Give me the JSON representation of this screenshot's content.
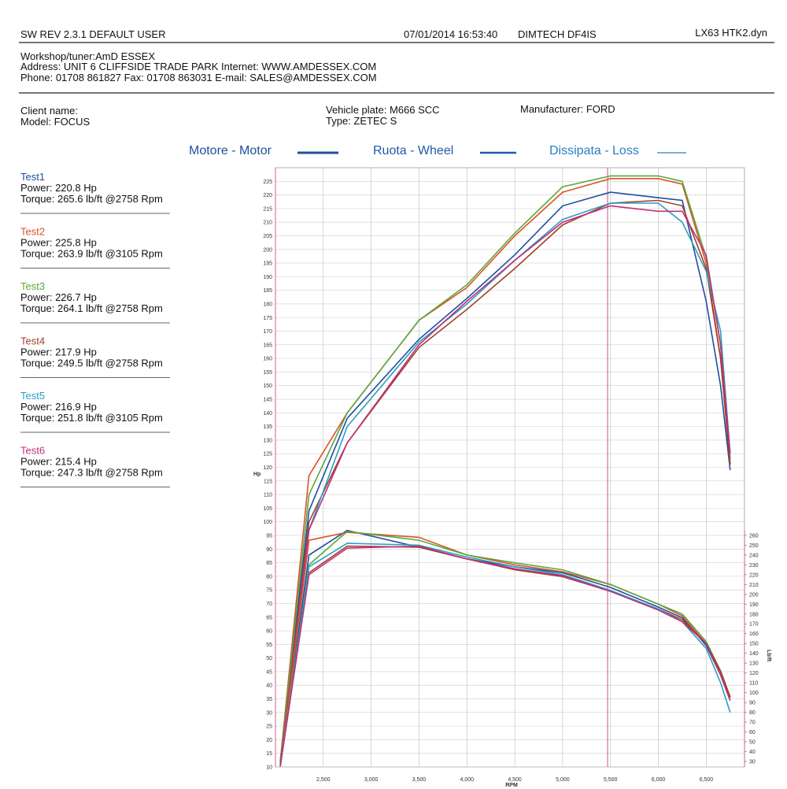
{
  "header": {
    "software": "SW REV 2.3.1   DEFAULT USER",
    "datetime": "07/01/2014 16:53:40",
    "device": "DIMTECH DF4IS",
    "file": "LX63 HTK2.dyn"
  },
  "workshop": [
    "Workshop/tuner:AmD ESSEX",
    "Address: UNIT 6 CLIFFSIDE TRADE PARK Internet: WWW.AMDESSEX.COM",
    "Phone: 01708 861827 Fax: 01708 863031 E-mail: SALES@AMDESSEX.COM"
  ],
  "vehicle": {
    "client": "Client name:",
    "model": "Model: FOCUS",
    "plate": "Vehicle plate: M666 SCC",
    "type": "Type: ZETEC S",
    "manufacturer": "Manufacturer: FORD"
  },
  "chart_data": {
    "type": "line",
    "line_legend": [
      {
        "label": "Motore - Motor",
        "color": "#1f4f9a"
      },
      {
        "label": "Ruota - Wheel",
        "color": "#1f5aa8"
      },
      {
        "label": "Dissipata - Loss",
        "color": "#2a7fc0"
      }
    ],
    "xlabel": "RPM",
    "ylabel": "Hp",
    "y2label": "Lb/ft",
    "x": [
      2050,
      2350,
      2750,
      3500,
      4000,
      4500,
      5000,
      5500,
      6000,
      6250,
      6500,
      6650,
      6750
    ],
    "xlim": [
      2000,
      6900
    ],
    "xticks": [
      {
        "value": 2500,
        "label": "2,500"
      },
      {
        "value": 3000,
        "label": "3,000"
      },
      {
        "value": 3500,
        "label": "3,500"
      },
      {
        "value": 4000,
        "label": "4,000"
      },
      {
        "value": 4500,
        "label": "4,500"
      },
      {
        "value": 5000,
        "label": "5,000"
      },
      {
        "value": 5500,
        "label": "5,500"
      },
      {
        "value": 6000,
        "label": "6,000"
      },
      {
        "value": 6500,
        "label": "6,500"
      }
    ],
    "ylim": [
      10,
      230
    ],
    "yticks": [
      10,
      15,
      20,
      25,
      30,
      35,
      40,
      45,
      50,
      55,
      60,
      65,
      70,
      75,
      80,
      85,
      90,
      95,
      100,
      105,
      110,
      115,
      120,
      125,
      130,
      135,
      140,
      145,
      150,
      155,
      160,
      165,
      170,
      175,
      180,
      185,
      190,
      195,
      200,
      205,
      210,
      215,
      220,
      225
    ],
    "y2lim": [
      24.4,
      634
    ],
    "y2ticks": [
      30,
      40,
      50,
      60,
      70,
      80,
      90,
      100,
      110,
      120,
      130,
      140,
      150,
      160,
      170,
      180,
      190,
      200,
      210,
      220,
      230,
      240,
      250,
      260
    ],
    "marker_x": 5470,
    "grid": true,
    "series": [
      {
        "name": "Test1",
        "summary": [
          "Power: 220.8 Hp",
          "Torque: 265.6 lb/ft @2758 Rpm"
        ],
        "color": "#1f4fa0",
        "values": [
          12,
          104,
          138,
          167,
          182,
          198,
          216,
          221,
          219,
          218,
          181,
          150,
          119
        ]
      },
      {
        "name": "Test2",
        "summary": [
          "Power: 225.8 Hp",
          "Torque: 263.9 lb/ft @3105 Rpm"
        ],
        "color": "#d9532c",
        "values": [
          12,
          117,
          140,
          174,
          186,
          205,
          221,
          226,
          226,
          224,
          195,
          160,
          121
        ]
      },
      {
        "name": "Test3",
        "summary": [
          "Power: 226.7 Hp",
          "Torque: 264.1 lb/ft @2758 Rpm"
        ],
        "color": "#5aa83a",
        "values": [
          12,
          110,
          140,
          174,
          187,
          206,
          223,
          227,
          227,
          225,
          197,
          165,
          123
        ]
      },
      {
        "name": "Test4",
        "summary": [
          "Power: 217.9 Hp",
          "Torque: 249.5 lb/ft @2758 Rpm"
        ],
        "color": "#a0402a",
        "values": [
          11,
          100,
          129,
          164,
          178,
          193,
          209,
          217,
          218,
          216,
          193,
          160,
          121
        ]
      },
      {
        "name": "Test5",
        "summary": [
          "Power: 216.9 Hp",
          "Torque: 251.8 lb/ft @3105 Rpm"
        ],
        "color": "#2a9fc0",
        "values": [
          11,
          97,
          135,
          166,
          180,
          196,
          211,
          217,
          217,
          210,
          192,
          170,
          125
        ]
      },
      {
        "name": "Test6",
        "summary": [
          "Power: 215.4 Hp",
          "Torque: 247.3 lb/ft @2758 Rpm"
        ],
        "color": "#c0307a",
        "values": [
          11,
          97,
          129,
          165,
          181,
          196,
          210,
          216,
          214,
          214,
          198,
          165,
          125
        ]
      },
      {
        "axis": "y2",
        "color": "#1f4fa0",
        "values": [
          25,
          240,
          265,
          248,
          236,
          228,
          222,
          207,
          187,
          176,
          148,
          118,
          92
        ]
      },
      {
        "axis": "y2",
        "color": "#d9532c",
        "values": [
          25,
          255,
          263,
          258,
          240,
          230,
          223,
          210,
          190,
          178,
          150,
          120,
          95
        ]
      },
      {
        "axis": "y2",
        "color": "#5aa83a",
        "values": [
          25,
          230,
          264,
          255,
          240,
          232,
          225,
          210,
          190,
          180,
          152,
          122,
          96
        ]
      },
      {
        "axis": "y2",
        "color": "#a0402a",
        "values": [
          25,
          222,
          249,
          248,
          236,
          225,
          218,
          203,
          185,
          174,
          150,
          122,
          95
        ]
      },
      {
        "axis": "y2",
        "color": "#2a9fc0",
        "values": [
          25,
          228,
          252,
          250,
          238,
          228,
          220,
          204,
          185,
          172,
          145,
          110,
          80
        ]
      },
      {
        "axis": "y2",
        "color": "#c0307a",
        "values": [
          25,
          220,
          247,
          249,
          236,
          226,
          219,
          203,
          184,
          172,
          150,
          118,
          92
        ]
      }
    ]
  }
}
